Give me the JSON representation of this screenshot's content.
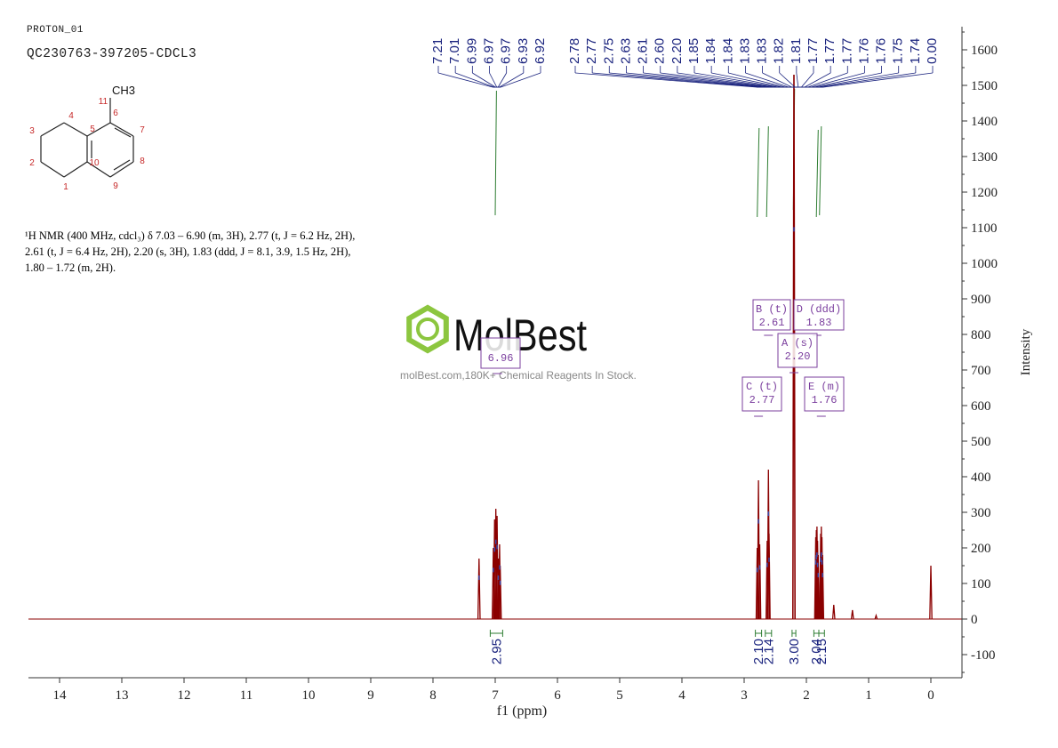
{
  "sample_id": "PROTON_01",
  "compound_name": "QC230763-397205-CDCL3",
  "structure": {
    "methyl_label": "CH3",
    "atom_numbers": [
      "1",
      "2",
      "3",
      "4",
      "5",
      "6",
      "7",
      "8",
      "9",
      "10",
      "11"
    ]
  },
  "description_lines": [
    "¹H NMR (400 MHz, cdcl₃) δ 7.03 – 6.90 (m, 3H), 2.77 (t, J = 6.2 Hz, 2H),",
    "2.61 (t, J = 6.4 Hz, 2H), 2.20 (s, 3H), 1.83 (ddd, J = 8.1, 3.9, 1.5 Hz, 2H),",
    "1.80 – 1.72 (m, 2H)."
  ],
  "watermark": {
    "brand": "MolBest",
    "tagline": "molBest.com,180K+ Chemical Reagents In Stock."
  },
  "colors": {
    "spectrum": "#8b0000",
    "peak_labels": "#1a237e",
    "integral": "#2e7d32",
    "multiplet_box": "#7b3f9e",
    "watermark_green": "#8cc63f",
    "axis": "#333333"
  },
  "chart_data": {
    "type": "line",
    "xlabel": "f1 (ppm)",
    "ylabel": "Intensity",
    "x_ticks": [
      14,
      13,
      12,
      11,
      10,
      9,
      8,
      7,
      6,
      5,
      4,
      3,
      2,
      1,
      0
    ],
    "y_ticks": [
      -100,
      0,
      100,
      200,
      300,
      400,
      500,
      600,
      700,
      800,
      900,
      1000,
      1100,
      1200,
      1300,
      1400,
      1500,
      1600
    ],
    "xlim": [
      14.5,
      -0.5
    ],
    "ylim": [
      -165,
      1665
    ],
    "peaks": [
      {
        "ppm": 7.26,
        "height": 170
      },
      {
        "ppm": 7.03,
        "height": 200
      },
      {
        "ppm": 7.01,
        "height": 280
      },
      {
        "ppm": 6.99,
        "height": 310
      },
      {
        "ppm": 6.97,
        "height": 290
      },
      {
        "ppm": 6.95,
        "height": 170
      },
      {
        "ppm": 6.93,
        "height": 210
      },
      {
        "ppm": 6.92,
        "height": 150
      },
      {
        "ppm": 2.79,
        "height": 200
      },
      {
        "ppm": 2.77,
        "height": 390
      },
      {
        "ppm": 2.75,
        "height": 210
      },
      {
        "ppm": 2.63,
        "height": 220
      },
      {
        "ppm": 2.61,
        "height": 420
      },
      {
        "ppm": 2.6,
        "height": 240
      },
      {
        "ppm": 2.2,
        "height": 1530
      },
      {
        "ppm": 1.85,
        "height": 230
      },
      {
        "ppm": 1.84,
        "height": 250
      },
      {
        "ppm": 1.83,
        "height": 260
      },
      {
        "ppm": 1.82,
        "height": 220
      },
      {
        "ppm": 1.81,
        "height": 180
      },
      {
        "ppm": 1.77,
        "height": 240
      },
      {
        "ppm": 1.76,
        "height": 260
      },
      {
        "ppm": 1.75,
        "height": 230
      },
      {
        "ppm": 1.74,
        "height": 180
      },
      {
        "ppm": 1.56,
        "height": 40
      },
      {
        "ppm": 1.26,
        "height": 25
      },
      {
        "ppm": 0.88,
        "height": 10
      },
      {
        "ppm": 0.0,
        "height": 150
      }
    ],
    "peak_labels_aromatic": [
      "7.21",
      "7.01",
      "6.99",
      "6.97",
      "6.97",
      "6.93",
      "6.92"
    ],
    "peak_labels_aliphatic": [
      "2.78",
      "2.77",
      "2.75",
      "2.63",
      "2.61",
      "2.60",
      "2.20",
      "1.85",
      "1.84",
      "1.84",
      "1.83",
      "1.83",
      "1.82",
      "1.81",
      "1.77",
      "1.77",
      "1.77",
      "1.76",
      "1.76",
      "1.75",
      "1.74",
      "0.00"
    ],
    "integrals": [
      {
        "ppm_from": 7.08,
        "ppm_to": 6.88,
        "value": "2.95"
      },
      {
        "ppm_from": 2.82,
        "ppm_to": 2.72,
        "value": "2.10"
      },
      {
        "ppm_from": 2.66,
        "ppm_to": 2.56,
        "value": "2.14"
      },
      {
        "ppm_from": 2.23,
        "ppm_to": 2.17,
        "value": "3.00"
      },
      {
        "ppm_from": 1.88,
        "ppm_to": 1.8,
        "value": "2.04"
      },
      {
        "ppm_from": 1.8,
        "ppm_to": 1.71,
        "value": "2.15"
      }
    ],
    "multiplets": [
      {
        "label": "A (s)",
        "shift": "2.20",
        "ppm": 2.2
      },
      {
        "label": "B (t)",
        "shift": "2.61",
        "ppm": 2.61
      },
      {
        "label": "C (t)",
        "shift": "2.77",
        "ppm": 2.77
      },
      {
        "label": "D (ddd)",
        "shift": "1.83",
        "ppm": 1.83
      },
      {
        "label": "E (m)",
        "shift": "1.76",
        "ppm": 1.76
      },
      {
        "label": "",
        "shift": "6.96",
        "ppm": 6.96
      }
    ]
  }
}
